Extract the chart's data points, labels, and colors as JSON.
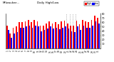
{
  "title": "Milwaukee...",
  "subtitle": "Daily High/Low",
  "bar_width": 0.4,
  "high_color": "#ff0000",
  "low_color": "#0000ff",
  "background_color": "#ffffff",
  "ylim": [
    0,
    80
  ],
  "yticks": [
    10,
    20,
    30,
    40,
    50,
    60,
    70,
    80
  ],
  "days": [
    1,
    2,
    3,
    4,
    5,
    6,
    7,
    8,
    9,
    10,
    11,
    12,
    13,
    14,
    15,
    16,
    17,
    18,
    19,
    20,
    21,
    22,
    23,
    24,
    25,
    26,
    27,
    28,
    29,
    30,
    31
  ],
  "high": [
    52,
    35,
    48,
    50,
    60,
    60,
    62,
    65,
    60,
    65,
    62,
    52,
    52,
    58,
    62,
    58,
    60,
    56,
    62,
    63,
    58,
    52,
    52,
    63,
    56,
    65,
    62,
    60,
    65,
    75,
    70
  ],
  "low": [
    42,
    25,
    35,
    38,
    48,
    48,
    50,
    52,
    48,
    52,
    50,
    40,
    42,
    46,
    50,
    46,
    48,
    44,
    48,
    50,
    45,
    40,
    38,
    50,
    42,
    52,
    48,
    48,
    52,
    62,
    58
  ],
  "dotted_lines": [
    19.5,
    20.5,
    21.5,
    22.5
  ],
  "legend_high": "High",
  "legend_low": "Low"
}
